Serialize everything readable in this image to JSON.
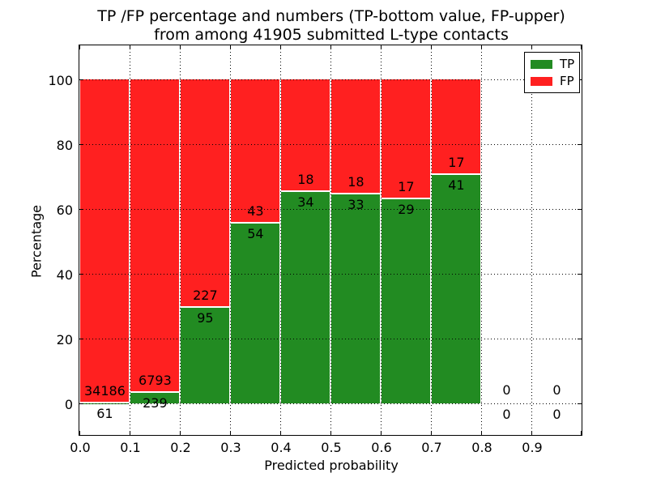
{
  "chart_data": {
    "type": "bar",
    "stacked": true,
    "normalized_to_percent": true,
    "title_line1": "TP /FP percentage and numbers (TP-bottom value, FP-upper)",
    "title_line2": "from among 41905 submitted L-type contacts",
    "total_submitted": 41905,
    "xlabel": "Predicted probability",
    "ylabel": "Percentage",
    "x_tick_labels": [
      "0.0",
      "0.1",
      "0.2",
      "0.3",
      "0.4",
      "0.5",
      "0.6",
      "0.7",
      "0.8",
      "0.9"
    ],
    "y_tick_labels": [
      "0",
      "20",
      "40",
      "60",
      "80",
      "100"
    ],
    "xlim": [
      0.0,
      1.0
    ],
    "ylim": [
      -10,
      110.5
    ],
    "grid": "dotted",
    "annotation_note": "TP count below stack boundary, FP count above it",
    "legend": {
      "position": "upper right",
      "entries": [
        {
          "label": "TP",
          "color": "#228b22"
        },
        {
          "label": "FP",
          "color": "#ff2020"
        }
      ]
    },
    "colors": {
      "tp": "#228b22",
      "fp": "#ff2020",
      "grid": "#000000"
    },
    "bins": [
      {
        "range": "0.0-0.1",
        "tp": 61,
        "fp": 34186,
        "tp_pct": 0.18
      },
      {
        "range": "0.1-0.2",
        "tp": 239,
        "fp": 6793,
        "tp_pct": 3.4
      },
      {
        "range": "0.2-0.3",
        "tp": 95,
        "fp": 227,
        "tp_pct": 29.5
      },
      {
        "range": "0.3-0.4",
        "tp": 54,
        "fp": 43,
        "tp_pct": 55.67
      },
      {
        "range": "0.4-0.5",
        "tp": 34,
        "fp": 18,
        "tp_pct": 65.38
      },
      {
        "range": "0.5-0.6",
        "tp": 33,
        "fp": 18,
        "tp_pct": 64.71
      },
      {
        "range": "0.6-0.7",
        "tp": 29,
        "fp": 17,
        "tp_pct": 63.04
      },
      {
        "range": "0.7-0.8",
        "tp": 41,
        "fp": 17,
        "tp_pct": 70.69
      },
      {
        "range": "0.8-0.9",
        "tp": 0,
        "fp": 0,
        "tp_pct": null
      },
      {
        "range": "0.9-1.0",
        "tp": 0,
        "fp": 0,
        "tp_pct": null
      }
    ]
  }
}
